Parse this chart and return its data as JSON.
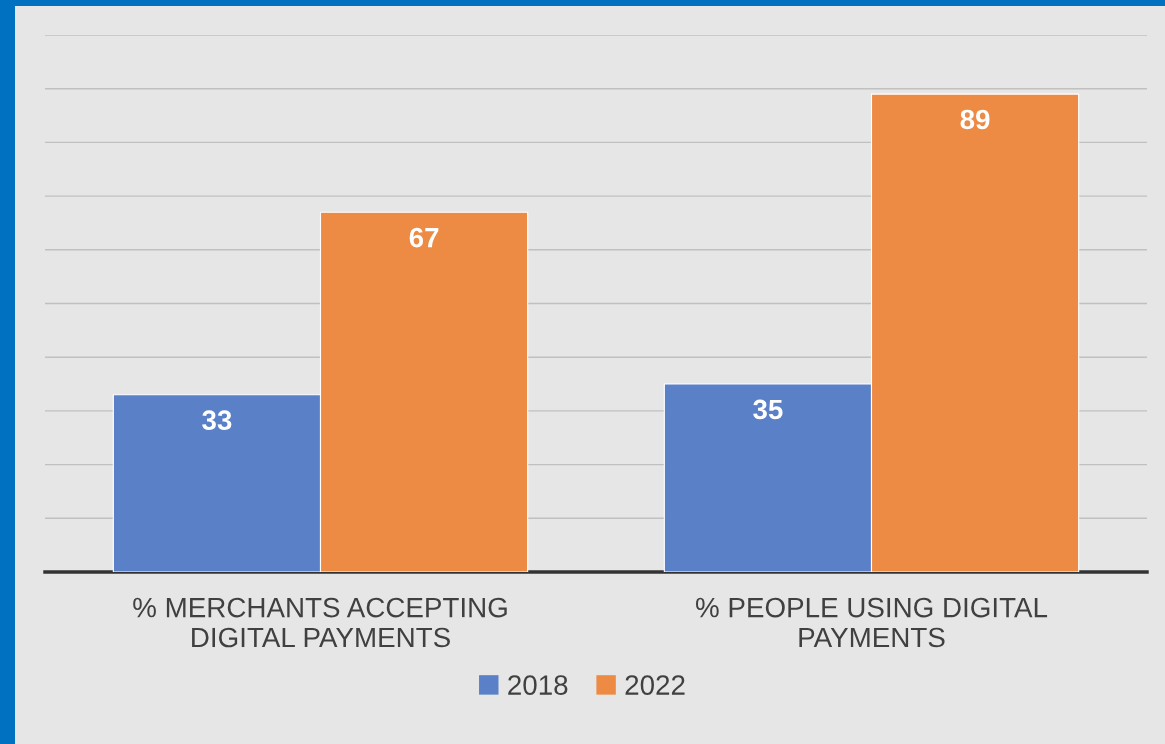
{
  "chart_data": {
    "type": "bar",
    "categories": [
      "% MERCHANTS ACCEPTING\nDIGITAL PAYMENTS",
      "% PEOPLE USING DIGITAL\nPAYMENTS"
    ],
    "series": [
      {
        "name": "2018",
        "color": "#5a80c8",
        "values": [
          33,
          35
        ]
      },
      {
        "name": "2022",
        "color": "#ed8b45",
        "values": [
          67,
          89
        ]
      }
    ],
    "ylim": [
      0,
      100
    ],
    "yticks": [
      {
        "value": 0,
        "label": null
      },
      {
        "value": 10,
        "label": null
      },
      {
        "value": 20,
        "label": null
      },
      {
        "value": 30,
        "label": null
      },
      {
        "value": 40,
        "label": null
      },
      {
        "value": 50,
        "label": null
      },
      {
        "value": 60,
        "label": null
      },
      {
        "value": 70,
        "label": null
      },
      {
        "value": 80,
        "label": null
      },
      {
        "value": 90,
        "label": null
      },
      {
        "value": 100,
        "label": null
      }
    ],
    "tick_labels": "x",
    "grid": "y",
    "data_labels": true,
    "legend": "bottom"
  }
}
